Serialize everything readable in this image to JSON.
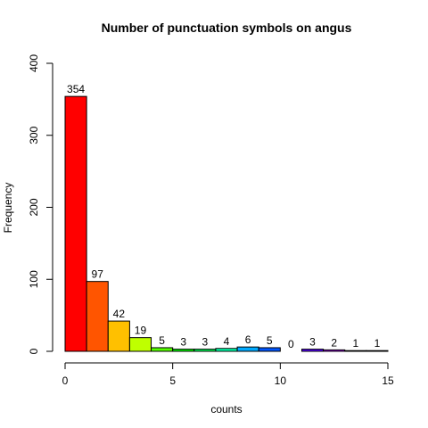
{
  "chart_data": {
    "type": "bar",
    "title": "Number of punctuation symbols on angus",
    "xlabel": "counts",
    "ylabel": "Frequency",
    "xlim": [
      0,
      15
    ],
    "ylim": [
      0,
      400
    ],
    "x_ticks": [
      0,
      5,
      10,
      15
    ],
    "y_ticks": [
      0,
      100,
      200,
      300,
      400
    ],
    "grid": false,
    "legend": "none",
    "bin_edges": [
      0,
      1,
      2,
      3,
      4,
      5,
      6,
      7,
      8,
      9,
      10,
      11,
      12,
      13,
      14,
      15
    ],
    "values": [
      354,
      97,
      42,
      19,
      5,
      3,
      3,
      4,
      6,
      5,
      0,
      3,
      2,
      1,
      1
    ],
    "bar_colors": [
      "#FF0000",
      "#FF5500",
      "#FFC000",
      "#BFFF00",
      "#55FF00",
      "#00FF00",
      "#00FF55",
      "#00FFAA",
      "#00AAFF",
      "#0055FF",
      "#0000FF",
      "#5500FF",
      "#AA00FF",
      "#FF00FF",
      "#FF00AA"
    ]
  }
}
